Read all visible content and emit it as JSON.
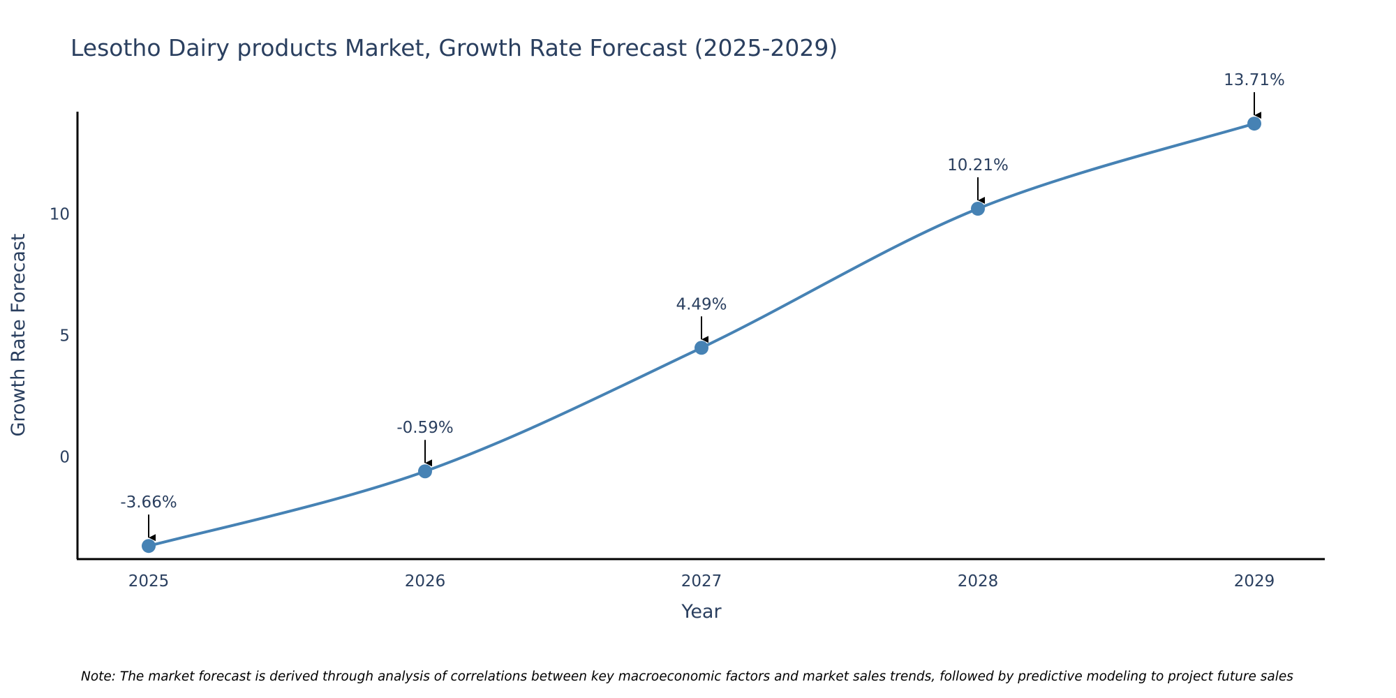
{
  "chart_data": {
    "type": "line",
    "title": "Lesotho Dairy products Market, Growth Rate Forecast (2025-2029)",
    "xlabel": "Year",
    "ylabel": "Growth Rate Forecast",
    "categories": [
      "2025",
      "2026",
      "2027",
      "2028",
      "2029"
    ],
    "series": [
      {
        "values": [
          -3.66,
          -0.59,
          4.49,
          10.21,
          13.71
        ],
        "labels": [
          "-3.66%",
          "-0.59%",
          "4.49%",
          "10.21%",
          "13.71%"
        ],
        "color": "#4682b4"
      }
    ],
    "ylim": [
      -4.2,
      14.2
    ],
    "yticks": [
      0,
      5,
      10
    ],
    "ytick_labels": [
      "0",
      "5",
      "10"
    ],
    "line_shape": "spline",
    "grid": false,
    "legend": "none",
    "annotation_arrow_color": "#000000",
    "axis_color": "#000000"
  },
  "note": "Note: The market forecast is derived through analysis of correlations between key macroeconomic factors and market sales trends, followed by predictive modeling to project future sales"
}
